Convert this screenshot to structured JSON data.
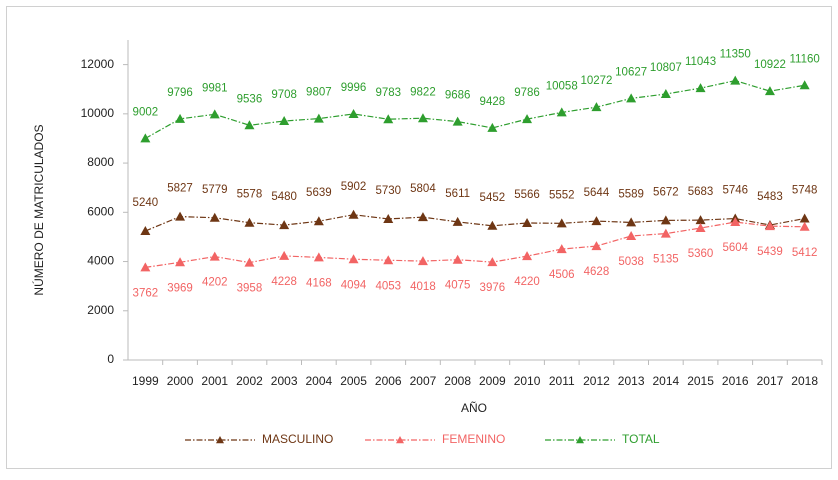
{
  "chart_data": {
    "type": "line",
    "xlabel": "AÑO",
    "ylabel": "NÚMERO DE MATRICULADOS",
    "categories": [
      "1999",
      "2000",
      "2001",
      "2002",
      "2003",
      "2004",
      "2005",
      "2006",
      "2007",
      "2008",
      "2009",
      "2010",
      "2011",
      "2012",
      "2013",
      "2014",
      "2015",
      "2016",
      "2017",
      "2018"
    ],
    "series": [
      {
        "name": "MASCULINO",
        "color": "#6e3614",
        "values": [
          5240,
          5827,
          5779,
          5578,
          5480,
          5639,
          5902,
          5730,
          5804,
          5611,
          5452,
          5566,
          5552,
          5644,
          5589,
          5672,
          5683,
          5746,
          5483,
          5748
        ]
      },
      {
        "name": "FEMENINO",
        "color": "#f26464",
        "values": [
          3762,
          3969,
          4202,
          3958,
          4228,
          4168,
          4094,
          4053,
          4018,
          4075,
          3976,
          4220,
          4506,
          4628,
          5038,
          5135,
          5360,
          5604,
          5439,
          5412
        ]
      },
      {
        "name": "TOTAL",
        "color": "#2e9e2e",
        "values": [
          9002,
          9796,
          9981,
          9536,
          9708,
          9807,
          9996,
          9783,
          9822,
          9686,
          9428,
          9786,
          10058,
          10272,
          10627,
          10807,
          11043,
          11350,
          10922,
          11160
        ]
      }
    ],
    "ylim": [
      0,
      13000
    ],
    "yticks": [
      0,
      2000,
      4000,
      6000,
      8000,
      10000,
      12000
    ],
    "grid": false,
    "legend": "bottom"
  }
}
